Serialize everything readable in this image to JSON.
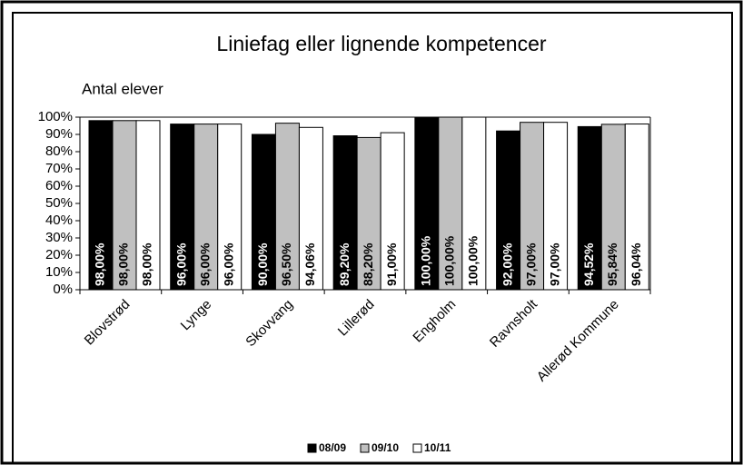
{
  "chart_data": {
    "type": "bar",
    "title": "Liniefag eller lignende kompetencer",
    "y_label": "Antal elever",
    "categories": [
      "Blovstrød",
      "Lynge",
      "Skovvang",
      "Lillerød",
      "Engholm",
      "Ravnsholt",
      "Allerød Kommune"
    ],
    "series": [
      {
        "name": "08/09",
        "color": "#000000",
        "values": [
          98,
          96,
          90,
          89.2,
          100,
          92,
          94.52
        ],
        "value_labels": [
          "98,00%",
          "96,00%",
          "90,00%",
          "89,20%",
          "100,00%",
          "92,00%",
          "94,52%"
        ]
      },
      {
        "name": "09/10",
        "color": "#c0c0c0",
        "values": [
          98,
          96,
          96.5,
          88.2,
          100,
          97,
          95.84
        ],
        "value_labels": [
          "98,00%",
          "96,00%",
          "96,50%",
          "88,20%",
          "100,00%",
          "97,00%",
          "95,84%"
        ]
      },
      {
        "name": "10/11",
        "color": "#ffffff",
        "values": [
          98,
          96,
          94.06,
          91,
          100,
          97,
          96.04
        ],
        "value_labels": [
          "98,00%",
          "96,00%",
          "94,06%",
          "91,00%",
          "100,00%",
          "97,00%",
          "96,04%"
        ]
      }
    ],
    "ylim": [
      0,
      100
    ],
    "yticks": [
      {
        "value": 0,
        "label": "0%"
      },
      {
        "value": 10,
        "label": "10%"
      },
      {
        "value": 20,
        "label": "20%"
      },
      {
        "value": 30,
        "label": "30%"
      },
      {
        "value": 40,
        "label": "40%"
      },
      {
        "value": 50,
        "label": "50%"
      },
      {
        "value": 60,
        "label": "60%"
      },
      {
        "value": 70,
        "label": "70%"
      },
      {
        "value": 80,
        "label": "80%"
      },
      {
        "value": 90,
        "label": "90%"
      },
      {
        "value": 100,
        "label": "100%"
      }
    ],
    "grid": false,
    "legend": "bottom"
  }
}
